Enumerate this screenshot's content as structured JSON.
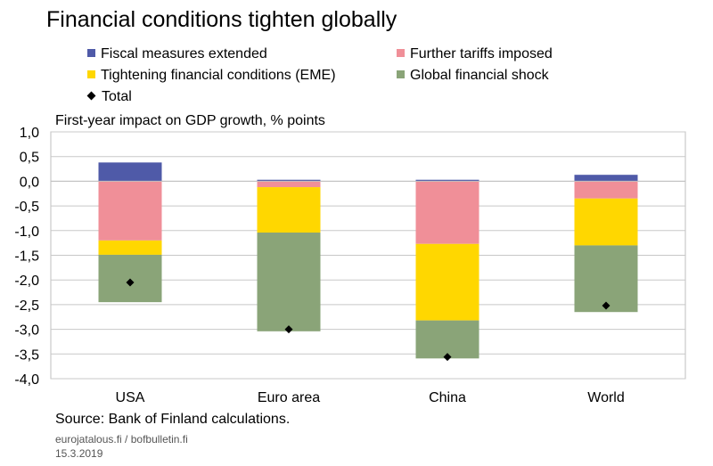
{
  "title": "Financial conditions tighten globally",
  "subtitle": "First-year impact on GDP growth, % points",
  "source": "Source: Bank of Finland calculations.",
  "footer_site": "eurojatalous.fi / bofbulletin.fi",
  "footer_date": "15.3.2019",
  "legend": [
    {
      "label": "Fiscal measures extended",
      "color": "#4f5aa8",
      "marker": "square"
    },
    {
      "label": "Further tariffs imposed",
      "color": "#f08f98",
      "marker": "square"
    },
    {
      "label": "Tightening financial conditions (EME)",
      "color": "#ffd700",
      "marker": "square"
    },
    {
      "label": "Global financial shock",
      "color": "#8aa478",
      "marker": "square"
    },
    {
      "label": "Total",
      "color": "#000000",
      "marker": "diamond"
    }
  ],
  "chart_data": {
    "type": "bar",
    "stacked": true,
    "categories": [
      "USA",
      "Euro area",
      "China",
      "World"
    ],
    "series": [
      {
        "name": "Fiscal measures extended",
        "color": "#4f5aa8",
        "values": [
          0.38,
          0.03,
          0.03,
          0.13
        ]
      },
      {
        "name": "Further tariffs imposed",
        "color": "#f08f98",
        "values": [
          -1.2,
          -0.12,
          -1.27,
          -0.35
        ]
      },
      {
        "name": "Tightening financial conditions (EME)",
        "color": "#ffd700",
        "values": [
          -0.29,
          -0.92,
          -1.55,
          -0.95
        ]
      },
      {
        "name": "Global financial shock",
        "color": "#8aa478",
        "values": [
          -0.96,
          -2.0,
          -0.77,
          -1.35
        ]
      }
    ],
    "total": {
      "name": "Total",
      "values": [
        -2.05,
        -3.0,
        -3.56,
        -2.52
      ]
    },
    "ylabel": "First-year impact on GDP growth, % points",
    "ylim": [
      -4.0,
      1.0
    ],
    "yticks": [
      "1,0",
      "0,5",
      "0,0",
      "-0,5",
      "-1,0",
      "-1,5",
      "-2,0",
      "-2,5",
      "-3,0",
      "-3,5",
      "-4,0"
    ],
    "grid": true
  }
}
